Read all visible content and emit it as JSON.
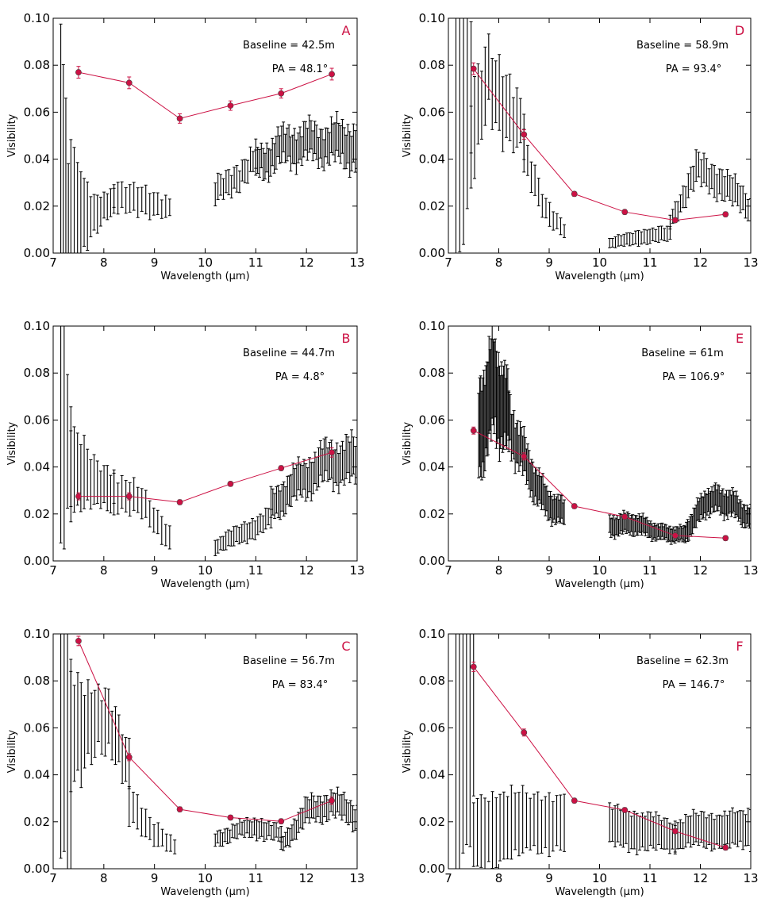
{
  "figure": {
    "colors": {
      "model": "#cc1144",
      "observed": "#000000",
      "marker_edge": "#444444",
      "axes": "#000000"
    }
  },
  "chart_data": [
    {
      "id": "A",
      "type": "errorbar+line",
      "letter": "A",
      "annotations": [
        "Baseline = 42.5m",
        "PA = 48.1°"
      ],
      "xlabel": "Wavelength (μm)",
      "ylabel": "Visibility",
      "xlim": [
        7,
        13
      ],
      "ylim": [
        0,
        0.1
      ],
      "xticks": [
        "7",
        "8",
        "9",
        "10",
        "11",
        "12",
        "13"
      ],
      "yticks": [
        "0.00",
        "0.02",
        "0.04",
        "0.06",
        "0.08",
        "0.10"
      ],
      "model": {
        "x": [
          7.5,
          8.5,
          9.5,
          10.5,
          11.5,
          12.5
        ],
        "y": [
          0.077,
          0.0725,
          0.0573,
          0.0628,
          0.068,
          0.0762
        ],
        "yerr": [
          0.0025,
          0.0025,
          0.002,
          0.002,
          0.002,
          0.0025
        ]
      },
      "observed": [
        {
          "x_start": 7.15,
          "x_end": 7.3,
          "n": 4,
          "y": [
            0.035,
            0.012
          ],
          "err": [
            0.065,
            0.03
          ]
        },
        {
          "x_start": 7.35,
          "x_end": 8.2,
          "n": 14,
          "y": [
            0.016,
            0.017,
            0.022
          ],
          "err": [
            0.03,
            0.008,
            0.005
          ]
        },
        {
          "x_start": 8.2,
          "x_end": 9.3,
          "n": 15,
          "y": [
            0.022,
            0.024,
            0.018
          ],
          "err": [
            0.006,
            0.006,
            0.004
          ]
        },
        {
          "x_start": 10.2,
          "x_end": 11.0,
          "n": 16,
          "y": [
            0.025,
            0.033,
            0.038
          ],
          "err": [
            0.005,
            0.005,
            0.005
          ]
        },
        {
          "x_start": 11.0,
          "x_end": 13.0,
          "n": 56,
          "y": [
            0.038,
            0.046,
            0.047,
            0.046
          ],
          "err": [
            0.006,
            0.007,
            0.007,
            0.009
          ]
        }
      ]
    },
    {
      "id": "D",
      "type": "errorbar+line",
      "letter": "D",
      "annotations": [
        "Baseline = 58.9m",
        "PA = 93.4°"
      ],
      "xlabel": "Wavelength (μm)",
      "ylabel": "Visibility",
      "xlim": [
        7,
        13
      ],
      "ylim": [
        0,
        0.1
      ],
      "xticks": [
        "7",
        "8",
        "9",
        "10",
        "11",
        "12",
        "13"
      ],
      "yticks": [
        "0.00",
        "0.02",
        "0.04",
        "0.06",
        "0.08",
        "0.10"
      ],
      "model": {
        "x": [
          7.5,
          8.5,
          9.5,
          10.5,
          11.5,
          12.5
        ],
        "y": [
          0.0785,
          0.0505,
          0.0252,
          0.0175,
          0.014,
          0.0165
        ],
        "yerr": [
          0.0025,
          0.002,
          0.001,
          0.001,
          0.001,
          0.001
        ]
      },
      "observed": [
        {
          "x_start": 7.15,
          "x_end": 7.45,
          "n": 5,
          "y": [
            0.07,
            0.065
          ],
          "err": [
            0.09,
            0.03
          ]
        },
        {
          "x_start": 7.45,
          "x_end": 8.5,
          "n": 16,
          "y": [
            0.045,
            0.075,
            0.065,
            0.05
          ],
          "err": [
            0.02,
            0.015,
            0.015,
            0.01
          ]
        },
        {
          "x_start": 8.5,
          "x_end": 9.3,
          "n": 12,
          "y": [
            0.04,
            0.02,
            0.01
          ],
          "err": [
            0.008,
            0.005,
            0.003
          ]
        },
        {
          "x_start": 10.2,
          "x_end": 11.4,
          "n": 22,
          "y": [
            0.004,
            0.007,
            0.008
          ],
          "err": [
            0.002,
            0.003,
            0.003
          ]
        },
        {
          "x_start": 11.4,
          "x_end": 13.0,
          "n": 32,
          "y": [
            0.014,
            0.035,
            0.03,
            0.018
          ],
          "err": [
            0.003,
            0.006,
            0.006,
            0.005
          ]
        }
      ]
    },
    {
      "id": "B",
      "type": "errorbar+line",
      "letter": "B",
      "annotations": [
        "Baseline = 44.7m",
        "PA = 4.8°"
      ],
      "xlabel": "Wavelength (μm)",
      "ylabel": "Visibility",
      "xlim": [
        7,
        13
      ],
      "ylim": [
        0,
        0.1
      ],
      "xticks": [
        "7",
        "8",
        "9",
        "10",
        "11",
        "12",
        "13"
      ],
      "yticks": [
        "0.00",
        "0.02",
        "0.04",
        "0.06",
        "0.08",
        "0.10"
      ],
      "model": {
        "x": [
          7.5,
          8.5,
          9.5,
          10.5,
          11.5,
          12.5
        ],
        "y": [
          0.0275,
          0.0275,
          0.025,
          0.0328,
          0.0395,
          0.0462
        ],
        "yerr": [
          0.0015,
          0.0015,
          0.001,
          0.001,
          0.001,
          0.002
        ]
      },
      "observed": [
        {
          "x_start": 7.15,
          "x_end": 7.35,
          "n": 4,
          "y": [
            0.07,
            0.045
          ],
          "err": [
            0.06,
            0.02
          ]
        },
        {
          "x_start": 7.35,
          "x_end": 8.2,
          "n": 14,
          "y": [
            0.04,
            0.032,
            0.032
          ],
          "err": [
            0.02,
            0.01,
            0.008
          ]
        },
        {
          "x_start": 8.2,
          "x_end": 9.3,
          "n": 15,
          "y": [
            0.03,
            0.024,
            0.01
          ],
          "err": [
            0.008,
            0.006,
            0.005
          ]
        },
        {
          "x_start": 10.2,
          "x_end": 11.3,
          "n": 22,
          "y": [
            0.006,
            0.012,
            0.018
          ],
          "err": [
            0.003,
            0.004,
            0.004
          ]
        },
        {
          "x_start": 11.3,
          "x_end": 13.0,
          "n": 48,
          "y": [
            0.023,
            0.034,
            0.042,
            0.042
          ],
          "err": [
            0.006,
            0.007,
            0.008,
            0.009
          ]
        }
      ]
    },
    {
      "id": "E",
      "type": "errorbar+line",
      "letter": "E",
      "annotations": [
        "Baseline = 61m",
        "PA = 106.9°"
      ],
      "xlabel": "Wavelength (μm)",
      "ylabel": "Visibility",
      "xlim": [
        7,
        13
      ],
      "ylim": [
        0,
        0.1
      ],
      "xticks": [
        "7",
        "8",
        "9",
        "10",
        "11",
        "12",
        "13"
      ],
      "yticks": [
        "0.00",
        "0.02",
        "0.04",
        "0.06",
        "0.08",
        "0.10"
      ],
      "model": {
        "x": [
          7.5,
          8.5,
          9.5,
          10.5,
          11.5,
          12.5
        ],
        "y": [
          0.0555,
          0.0445,
          0.0233,
          0.0188,
          0.0108,
          0.0097
        ],
        "yerr": [
          0.0015,
          0.0015,
          0.001,
          0.001,
          0.001,
          0.001
        ]
      },
      "observed": [
        {
          "x_start": 7.6,
          "x_end": 8.2,
          "n": 30,
          "y": [
            0.055,
            0.075,
            0.06
          ],
          "err": [
            0.02,
            0.02,
            0.015
          ]
        },
        {
          "x_start": 8.2,
          "x_end": 9.3,
          "n": 45,
          "y": [
            0.06,
            0.04,
            0.025,
            0.02
          ],
          "err": [
            0.01,
            0.008,
            0.006,
            0.005
          ]
        },
        {
          "x_start": 10.2,
          "x_end": 11.7,
          "n": 60,
          "y": [
            0.015,
            0.016,
            0.012,
            0.011
          ],
          "err": [
            0.004,
            0.004,
            0.003,
            0.003
          ]
        },
        {
          "x_start": 11.7,
          "x_end": 13.0,
          "n": 55,
          "y": [
            0.012,
            0.026,
            0.025,
            0.018
          ],
          "err": [
            0.004,
            0.005,
            0.005,
            0.004
          ]
        }
      ]
    },
    {
      "id": "C",
      "type": "errorbar+line",
      "letter": "C",
      "annotations": [
        "Baseline = 56.7m",
        "PA = 83.4°"
      ],
      "xlabel": "Wavelength (μm)",
      "ylabel": "Visibility",
      "xlim": [
        7,
        13
      ],
      "ylim": [
        0,
        0.1
      ],
      "xticks": [
        "7",
        "8",
        "9",
        "10",
        "11",
        "12",
        "13"
      ],
      "yticks": [
        "0.00",
        "0.02",
        "0.04",
        "0.06",
        "0.08",
        "0.10"
      ],
      "model": {
        "x": [
          7.5,
          8.5,
          9.5,
          10.5,
          11.5,
          12.5
        ],
        "y": [
          0.097,
          0.0475,
          0.0253,
          0.0218,
          0.0202,
          0.029
        ],
        "yerr": [
          0.002,
          0.0015,
          0.001,
          0.001,
          0.001,
          0.0015
        ]
      },
      "observed": [
        {
          "x_start": 7.15,
          "x_end": 7.35,
          "n": 4,
          "y": [
            0.07,
            0.04
          ],
          "err": [
            0.07,
            0.05
          ]
        },
        {
          "x_start": 7.35,
          "x_end": 8.5,
          "n": 18,
          "y": [
            0.06,
            0.065,
            0.058,
            0.045
          ],
          "err": [
            0.025,
            0.015,
            0.012,
            0.01
          ]
        },
        {
          "x_start": 8.5,
          "x_end": 9.4,
          "n": 12,
          "y": [
            0.03,
            0.015,
            0.009
          ],
          "err": [
            0.008,
            0.005,
            0.003
          ]
        },
        {
          "x_start": 10.2,
          "x_end": 11.5,
          "n": 28,
          "y": [
            0.013,
            0.016,
            0.018,
            0.014
          ],
          "err": [
            0.003,
            0.003,
            0.004,
            0.003
          ]
        },
        {
          "x_start": 11.5,
          "x_end": 13.0,
          "n": 36,
          "y": [
            0.01,
            0.024,
            0.028,
            0.022
          ],
          "err": [
            0.003,
            0.005,
            0.005,
            0.005
          ]
        }
      ]
    },
    {
      "id": "F",
      "type": "errorbar+line",
      "letter": "F",
      "annotations": [
        "Baseline = 62.3m",
        "PA = 146.7°"
      ],
      "xlabel": "Wavelength (μm)",
      "ylabel": "Visibility",
      "xlim": [
        7,
        13
      ],
      "ylim": [
        0,
        0.1
      ],
      "xticks": [
        "7",
        "8",
        "9",
        "10",
        "11",
        "12",
        "13"
      ],
      "yticks": [
        "0.00",
        "0.02",
        "0.04",
        "0.06",
        "0.08",
        "0.10"
      ],
      "model": {
        "x": [
          7.5,
          8.5,
          9.5,
          10.5,
          11.5,
          12.5
        ],
        "y": [
          0.086,
          0.058,
          0.029,
          0.025,
          0.016,
          0.009
        ],
        "yerr": [
          0.002,
          0.0015,
          0.001,
          0.001,
          0.001,
          0.001
        ]
      },
      "observed": [
        {
          "x_start": 7.15,
          "x_end": 7.5,
          "n": 6,
          "y": [
            0.07,
            0.06
          ],
          "err": [
            0.09,
            0.04
          ]
        },
        {
          "x_start": 7.5,
          "x_end": 9.3,
          "n": 25,
          "y": [
            0.015,
            0.018,
            0.02,
            0.02
          ],
          "err": [
            0.015,
            0.015,
            0.012,
            0.012
          ]
        },
        {
          "x_start": 10.2,
          "x_end": 11.5,
          "n": 25,
          "y": [
            0.018,
            0.016,
            0.014
          ],
          "err": [
            0.008,
            0.008,
            0.006
          ]
        },
        {
          "x_start": 11.5,
          "x_end": 13.0,
          "n": 30,
          "y": [
            0.014,
            0.017,
            0.016,
            0.018
          ],
          "err": [
            0.006,
            0.007,
            0.007,
            0.008
          ]
        }
      ]
    }
  ]
}
